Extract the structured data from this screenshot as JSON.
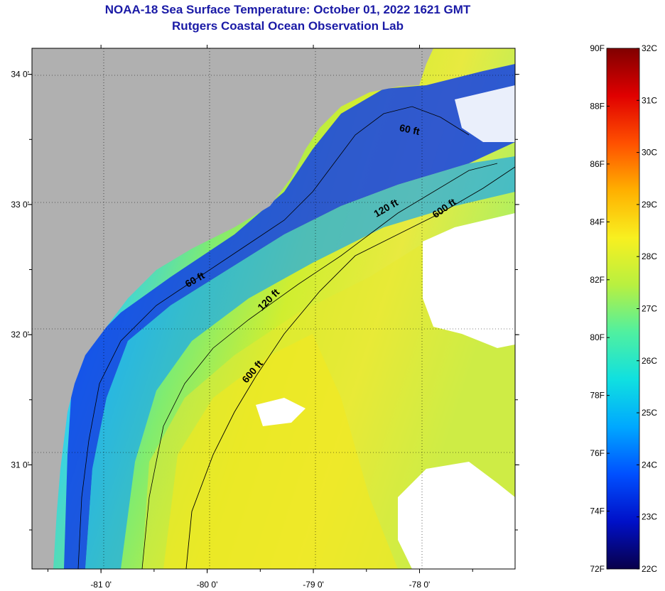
{
  "title": {
    "line1": "NOAA-18 Sea Surface Temperature:  October 01, 2022 1621 GMT",
    "line2": "Rutgers Coastal Ocean Observation Lab"
  },
  "map": {
    "lon_range": [
      -81.65,
      -77.1
    ],
    "lat_range": [
      30.2,
      34.2
    ],
    "x_tick_labels": [
      {
        "lon": -81,
        "label": "-81 0'"
      },
      {
        "lon": -80,
        "label": "-80 0'"
      },
      {
        "lon": -79,
        "label": "-79 0'"
      },
      {
        "lon": -78,
        "label": "-78 0'"
      }
    ],
    "y_tick_labels": [
      {
        "lat": 34,
        "label": "34 0'"
      },
      {
        "lat": 33,
        "label": "33 0'"
      },
      {
        "lat": 32,
        "label": "32 0'"
      },
      {
        "lat": 31,
        "label": "31 0'"
      }
    ],
    "colors": {
      "land": "#b0b0b0",
      "cloud": "#ffffff",
      "deep_blue": "#0a1fd6",
      "cyan": "#2fd8e8",
      "green": "#a0ec50",
      "yellow": "#f0ea20"
    },
    "contour_labels": [
      {
        "text": "60 ft",
        "lon": -78.1,
        "lat": 33.55,
        "angle": 12
      },
      {
        "text": "120 ft",
        "lon": -78.3,
        "lat": 32.95,
        "angle": -30
      },
      {
        "text": "600 ft",
        "lon": -77.75,
        "lat": 32.95,
        "angle": -35
      },
      {
        "text": "60 ft",
        "lon": -80.1,
        "lat": 32.4,
        "angle": -30
      },
      {
        "text": "120 ft",
        "lon": -79.4,
        "lat": 32.25,
        "angle": -45
      },
      {
        "text": "600 ft",
        "lon": -79.55,
        "lat": 31.7,
        "angle": -50
      }
    ]
  },
  "colorbar": {
    "f_labels": [
      "90F",
      "88F",
      "86F",
      "84F",
      "82F",
      "80F",
      "78F",
      "76F",
      "74F",
      "72F"
    ],
    "c_labels": [
      "32C",
      "31C",
      "30C",
      "29C",
      "28C",
      "27C",
      "26C",
      "25C",
      "24C",
      "23C",
      "22C"
    ],
    "colors": [
      "#08004a",
      "#0010c8",
      "#0050ff",
      "#00a8ff",
      "#10e0e0",
      "#50f0a0",
      "#b8f040",
      "#f8f020",
      "#ffb000",
      "#ff5000",
      "#e00000",
      "#800000"
    ]
  }
}
